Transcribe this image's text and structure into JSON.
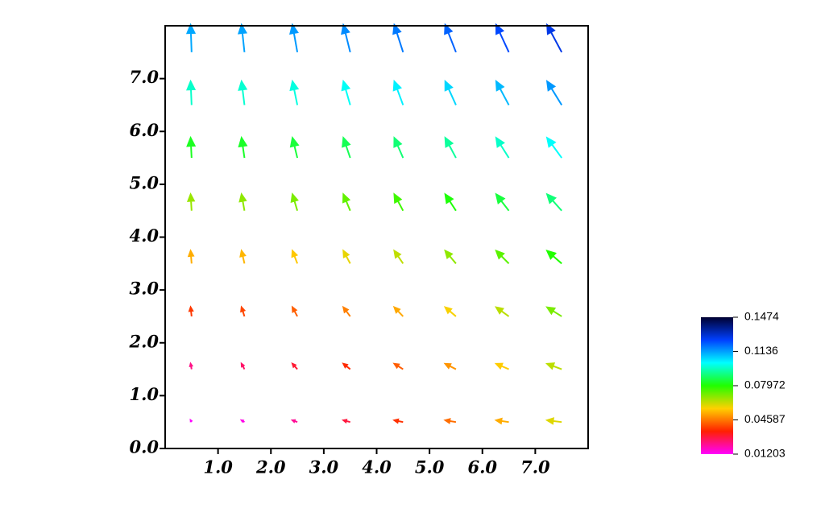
{
  "chart_data": {
    "type": "quiver",
    "xlim": [
      0,
      8
    ],
    "ylim": [
      0,
      8
    ],
    "xticks": [
      {
        "value": 1,
        "label": "1.0"
      },
      {
        "value": 2,
        "label": "2.0"
      },
      {
        "value": 3,
        "label": "3.0"
      },
      {
        "value": 4,
        "label": "4.0"
      },
      {
        "value": 5,
        "label": "5.0"
      },
      {
        "value": 6,
        "label": "6.0"
      },
      {
        "value": 7,
        "label": "7.0"
      }
    ],
    "yticks": [
      {
        "value": 0,
        "label": "0.0"
      },
      {
        "value": 1,
        "label": "1.0"
      },
      {
        "value": 2,
        "label": "2.0"
      },
      {
        "value": 3,
        "label": "3.0"
      },
      {
        "value": 4,
        "label": "4.0"
      },
      {
        "value": 5,
        "label": "5.0"
      },
      {
        "value": 6,
        "label": "6.0"
      },
      {
        "value": 7,
        "label": "7.0"
      }
    ],
    "x": [
      0.5,
      1.5,
      2.5,
      3.5,
      4.5,
      5.5,
      6.5,
      7.5,
      0.5,
      1.5,
      2.5,
      3.5,
      4.5,
      5.5,
      6.5,
      7.5,
      0.5,
      1.5,
      2.5,
      3.5,
      4.5,
      5.5,
      6.5,
      7.5,
      0.5,
      1.5,
      2.5,
      3.5,
      4.5,
      5.5,
      6.5,
      7.5,
      0.5,
      1.5,
      2.5,
      3.5,
      4.5,
      5.5,
      6.5,
      7.5,
      0.5,
      1.5,
      2.5,
      3.5,
      4.5,
      5.5,
      6.5,
      7.5,
      0.5,
      1.5,
      2.5,
      3.5,
      4.5,
      5.5,
      6.5,
      7.5,
      0.5,
      1.5,
      2.5,
      3.5,
      4.5,
      5.5,
      6.5,
      7.5
    ],
    "y": [
      0.5,
      0.5,
      0.5,
      0.5,
      0.5,
      0.5,
      0.5,
      0.5,
      1.5,
      1.5,
      1.5,
      1.5,
      1.5,
      1.5,
      1.5,
      1.5,
      2.5,
      2.5,
      2.5,
      2.5,
      2.5,
      2.5,
      2.5,
      2.5,
      3.5,
      3.5,
      3.5,
      3.5,
      3.5,
      3.5,
      3.5,
      3.5,
      4.5,
      4.5,
      4.5,
      4.5,
      4.5,
      4.5,
      4.5,
      4.5,
      5.5,
      5.5,
      5.5,
      5.5,
      5.5,
      5.5,
      5.5,
      5.5,
      6.5,
      6.5,
      6.5,
      6.5,
      6.5,
      6.5,
      6.5,
      6.5,
      7.5,
      7.5,
      7.5,
      7.5,
      7.5,
      7.5,
      7.5,
      7.5
    ],
    "u": [
      -0.004,
      -0.012,
      -0.02,
      -0.028,
      -0.036,
      -0.044,
      -0.052,
      -0.06,
      -0.004,
      -0.012,
      -0.02,
      -0.028,
      -0.036,
      -0.044,
      -0.052,
      -0.06,
      -0.004,
      -0.012,
      -0.02,
      -0.028,
      -0.036,
      -0.044,
      -0.052,
      -0.06,
      -0.004,
      -0.012,
      -0.02,
      -0.028,
      -0.036,
      -0.044,
      -0.052,
      -0.06,
      -0.004,
      -0.012,
      -0.02,
      -0.028,
      -0.036,
      -0.044,
      -0.052,
      -0.06,
      -0.004,
      -0.012,
      -0.02,
      -0.028,
      -0.036,
      -0.044,
      -0.052,
      -0.06,
      -0.004,
      -0.012,
      -0.02,
      -0.028,
      -0.036,
      -0.044,
      -0.052,
      -0.06,
      -0.004,
      -0.012,
      -0.02,
      -0.028,
      -0.036,
      -0.044,
      -0.052,
      -0.06
    ],
    "v": [
      0.0075,
      0.0075,
      0.0075,
      0.0075,
      0.0075,
      0.0075,
      0.0075,
      0.0075,
      0.0225,
      0.0225,
      0.0225,
      0.0225,
      0.0225,
      0.0225,
      0.0225,
      0.0225,
      0.0375,
      0.0375,
      0.0375,
      0.0375,
      0.0375,
      0.0375,
      0.0375,
      0.0375,
      0.0525,
      0.0525,
      0.0525,
      0.0525,
      0.0525,
      0.0525,
      0.0525,
      0.0525,
      0.0675,
      0.0675,
      0.0675,
      0.0675,
      0.0675,
      0.0675,
      0.0675,
      0.0675,
      0.0825,
      0.0825,
      0.0825,
      0.0825,
      0.0825,
      0.0825,
      0.0825,
      0.0825,
      0.0975,
      0.0975,
      0.0975,
      0.0975,
      0.0975,
      0.0975,
      0.0975,
      0.0975,
      0.1125,
      0.1125,
      0.1125,
      0.1125,
      0.1125,
      0.1125,
      0.1125,
      0.1125
    ],
    "colormap": [
      "#ff00ff",
      "#ff2000",
      "#ffd000",
      "#20ff00",
      "#00ffff",
      "#0040ff",
      "#000030"
    ],
    "clim": [
      0.01203,
      0.1474
    ],
    "colorbar_ticks": [
      0.01203,
      0.04587,
      0.07972,
      0.1136,
      0.1474
    ]
  }
}
